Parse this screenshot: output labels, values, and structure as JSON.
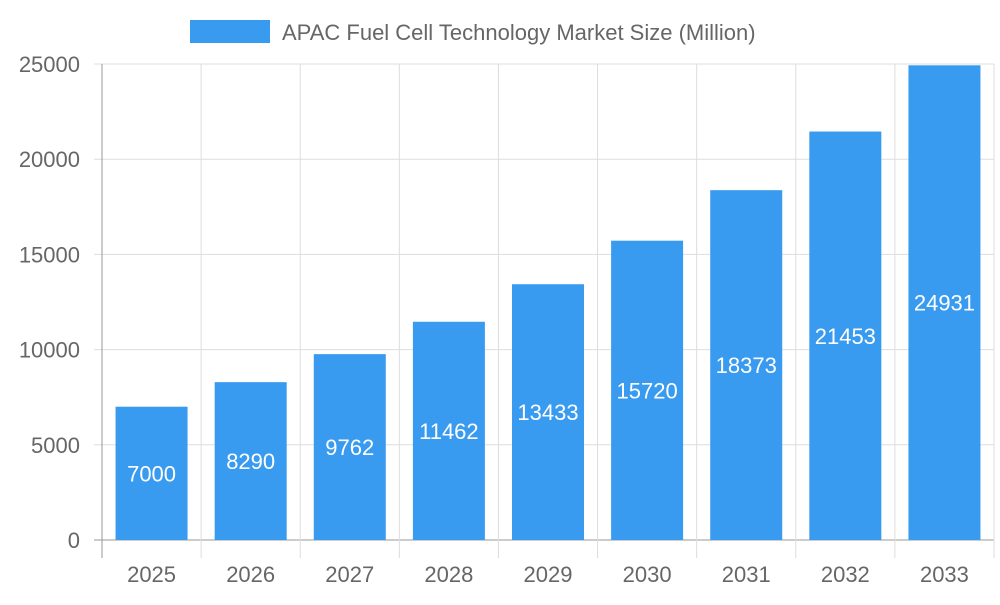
{
  "chart_data": {
    "type": "bar",
    "title": "",
    "legend": {
      "position": "top",
      "entries": [
        "APAC Fuel Cell Technology Market Size (Million)"
      ]
    },
    "categories": [
      "2025",
      "2026",
      "2027",
      "2028",
      "2029",
      "2030",
      "2031",
      "2032",
      "2033"
    ],
    "series": [
      {
        "name": "APAC Fuel Cell Technology Market Size (Million)",
        "values": [
          7000,
          8290,
          9762,
          11462,
          13433,
          15720,
          18373,
          21453,
          24931
        ],
        "color": "#389BEF"
      }
    ],
    "yticks": [
      "0",
      "5000",
      "10000",
      "15000",
      "20000",
      "25000"
    ],
    "ylim": [
      0,
      25000
    ],
    "xlabel": "",
    "ylabel": "",
    "grid": true,
    "data_labels": true
  }
}
